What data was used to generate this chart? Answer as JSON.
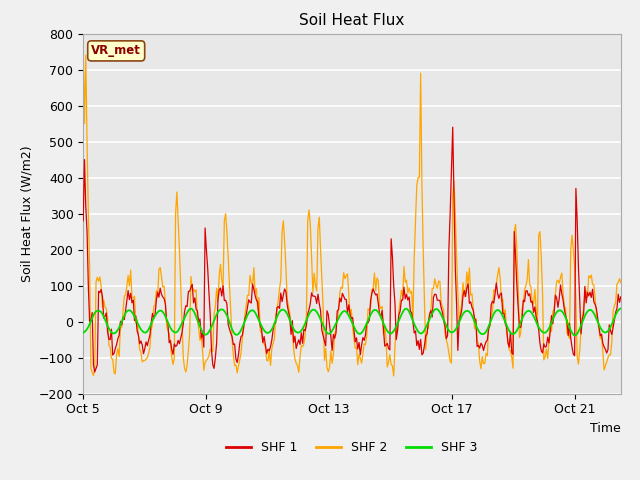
{
  "title": "Soil Heat Flux",
  "ylabel": "Soil Heat Flux (W/m2)",
  "xlabel": "Time",
  "ylim": [
    -200,
    800
  ],
  "yticks": [
    -200,
    -100,
    0,
    100,
    200,
    300,
    400,
    500,
    600,
    700,
    800
  ],
  "xtick_positions": [
    0,
    4,
    8,
    12,
    16
  ],
  "xtick_labels": [
    "Oct 5",
    "Oct 9",
    "Oct 13",
    "Oct 17",
    "Oct 21"
  ],
  "xlim": [
    0,
    17.5
  ],
  "bg_color": "#e8e8e8",
  "plot_bg_color": "#e8e8e8",
  "grid_color": "#ffffff",
  "shf1_color": "#dd0000",
  "shf2_color": "#ffa500",
  "shf3_color": "#00dd00",
  "legend_label": "VR_met",
  "line_labels": [
    "SHF 1",
    "SHF 2",
    "SHF 3"
  ],
  "legend_box_color": "#ffffcc",
  "legend_box_edge": "#8B4513",
  "legend_text_color": "#8B0000"
}
